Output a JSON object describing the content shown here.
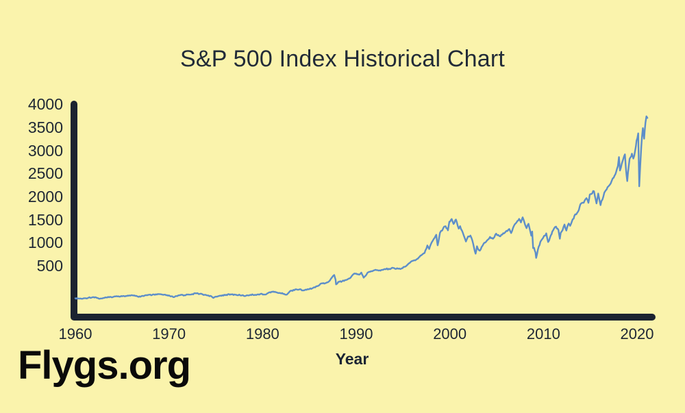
{
  "watermark": {
    "text": "Flygs.org"
  },
  "colors": {
    "background": "#FAF3AC",
    "axis": "#1B2330",
    "tick_text": "#1E2734",
    "title_text": "#222B38",
    "line": "#5D8EC9",
    "watermark_text": "#0A0A0A"
  },
  "chart_data": {
    "type": "line",
    "title": "S&P 500 Index Historical Chart",
    "xlabel": "Year",
    "ylabel": "",
    "x_ticks": [
      1960,
      1970,
      1980,
      1990,
      2000,
      2010,
      2020
    ],
    "y_ticks": [
      500,
      1000,
      1500,
      2000,
      2500,
      3000,
      3500,
      4000
    ],
    "xlim": [
      1959.6,
      2022
    ],
    "ylim": [
      0,
      4000
    ],
    "grid": false,
    "legend_position": "none",
    "series": [
      {
        "name": "S&P 500 Index",
        "color": "#5D8EC9",
        "points": [
          [
            1960.0,
            58
          ],
          [
            1960.3,
            55
          ],
          [
            1960.8,
            53
          ],
          [
            1961.4,
            65
          ],
          [
            1961.95,
            72
          ],
          [
            1962.2,
            69
          ],
          [
            1962.5,
            54
          ],
          [
            1962.75,
            56
          ],
          [
            1963.1,
            63
          ],
          [
            1963.6,
            70
          ],
          [
            1964.1,
            77
          ],
          [
            1964.6,
            82
          ],
          [
            1965.1,
            86
          ],
          [
            1965.5,
            85
          ],
          [
            1965.75,
            92
          ],
          [
            1966.1,
            93
          ],
          [
            1966.4,
            86
          ],
          [
            1966.75,
            74
          ],
          [
            1967.2,
            87
          ],
          [
            1967.7,
            95
          ],
          [
            1968.2,
            98
          ],
          [
            1968.5,
            99
          ],
          [
            1968.9,
            108
          ],
          [
            1969.3,
            101
          ],
          [
            1969.7,
            94
          ],
          [
            1970.1,
            86
          ],
          [
            1970.45,
            72
          ],
          [
            1970.9,
            84
          ],
          [
            1971.3,
            100
          ],
          [
            1971.65,
            94
          ],
          [
            1972.0,
            102
          ],
          [
            1972.5,
            108
          ],
          [
            1972.95,
            118
          ],
          [
            1973.3,
            110
          ],
          [
            1973.8,
            100
          ],
          [
            1974.2,
            92
          ],
          [
            1974.55,
            80
          ],
          [
            1974.75,
            62
          ],
          [
            1975.1,
            77
          ],
          [
            1975.5,
            90
          ],
          [
            1976.1,
            100
          ],
          [
            1976.7,
            104
          ],
          [
            1977.2,
            99
          ],
          [
            1977.8,
            93
          ],
          [
            1978.2,
            87
          ],
          [
            1978.7,
            100
          ],
          [
            1979.2,
            100
          ],
          [
            1979.75,
            108
          ],
          [
            1980.2,
            102
          ],
          [
            1980.6,
            121
          ],
          [
            1980.95,
            136
          ],
          [
            1981.4,
            131
          ],
          [
            1981.9,
            120
          ],
          [
            1982.3,
            110
          ],
          [
            1982.6,
            102
          ],
          [
            1982.9,
            140
          ],
          [
            1983.5,
            165
          ],
          [
            1983.9,
            163
          ],
          [
            1984.4,
            152
          ],
          [
            1984.9,
            165
          ],
          [
            1985.4,
            182
          ],
          [
            1985.95,
            207
          ],
          [
            1986.3,
            236
          ],
          [
            1986.7,
            239
          ],
          [
            1986.95,
            248
          ],
          [
            1987.3,
            291
          ],
          [
            1987.65,
            336
          ],
          [
            1987.8,
            280
          ],
          [
            1987.85,
            224
          ],
          [
            1988.1,
            255
          ],
          [
            1988.5,
            262
          ],
          [
            1988.9,
            276
          ],
          [
            1989.3,
            295
          ],
          [
            1989.7,
            346
          ],
          [
            1990.0,
            353
          ],
          [
            1990.3,
            340
          ],
          [
            1990.55,
            365
          ],
          [
            1990.8,
            304
          ],
          [
            1991.0,
            326
          ],
          [
            1991.3,
            375
          ],
          [
            1991.95,
            417
          ],
          [
            1992.5,
            414
          ],
          [
            1992.95,
            436
          ],
          [
            1993.5,
            448
          ],
          [
            1993.95,
            466
          ],
          [
            1994.25,
            445
          ],
          [
            1994.6,
            455
          ],
          [
            1994.95,
            460
          ],
          [
            1995.4,
            520
          ],
          [
            1995.95,
            615
          ],
          [
            1996.4,
            645
          ],
          [
            1996.6,
            670
          ],
          [
            1996.95,
            740
          ],
          [
            1997.3,
            790
          ],
          [
            1997.6,
            954
          ],
          [
            1997.8,
            877
          ],
          [
            1997.95,
            970
          ],
          [
            1998.3,
            1100
          ],
          [
            1998.55,
            1186
          ],
          [
            1998.7,
            957
          ],
          [
            1998.95,
            1229
          ],
          [
            1999.3,
            1330
          ],
          [
            1999.55,
            1372
          ],
          [
            1999.8,
            1282
          ],
          [
            1999.95,
            1469
          ],
          [
            2000.2,
            1527
          ],
          [
            2000.4,
            1420
          ],
          [
            2000.65,
            1517
          ],
          [
            2000.95,
            1320
          ],
          [
            2001.1,
            1373
          ],
          [
            2001.4,
            1225
          ],
          [
            2001.72,
            1040
          ],
          [
            2001.95,
            1148
          ],
          [
            2002.2,
            1170
          ],
          [
            2002.5,
            990
          ],
          [
            2002.75,
            776
          ],
          [
            2002.9,
            936
          ],
          [
            2003.1,
            855
          ],
          [
            2003.2,
            841
          ],
          [
            2003.6,
            990
          ],
          [
            2003.95,
            1058
          ],
          [
            2004.3,
            1140
          ],
          [
            2004.6,
            1100
          ],
          [
            2004.95,
            1211
          ],
          [
            2005.3,
            1156
          ],
          [
            2005.7,
            1220
          ],
          [
            2005.95,
            1248
          ],
          [
            2006.35,
            1310
          ],
          [
            2006.55,
            1223
          ],
          [
            2006.95,
            1418
          ],
          [
            2007.4,
            1530
          ],
          [
            2007.6,
            1455
          ],
          [
            2007.78,
            1565
          ],
          [
            2007.95,
            1468
          ],
          [
            2008.2,
            1330
          ],
          [
            2008.4,
            1425
          ],
          [
            2008.7,
            1166
          ],
          [
            2008.8,
            1255
          ],
          [
            2008.9,
            896
          ],
          [
            2009.0,
            903
          ],
          [
            2009.15,
            805
          ],
          [
            2009.22,
            683
          ],
          [
            2009.5,
            930
          ],
          [
            2009.75,
            1060
          ],
          [
            2009.95,
            1115
          ],
          [
            2010.3,
            1217
          ],
          [
            2010.5,
            1030
          ],
          [
            2010.7,
            1125
          ],
          [
            2010.95,
            1257
          ],
          [
            2011.15,
            1330
          ],
          [
            2011.35,
            1363
          ],
          [
            2011.6,
            1290
          ],
          [
            2011.75,
            1099
          ],
          [
            2011.85,
            1230
          ],
          [
            2011.95,
            1257
          ],
          [
            2012.25,
            1408
          ],
          [
            2012.45,
            1278
          ],
          [
            2012.7,
            1430
          ],
          [
            2012.85,
            1380
          ],
          [
            2012.95,
            1426
          ],
          [
            2013.4,
            1630
          ],
          [
            2013.7,
            1690
          ],
          [
            2013.95,
            1848
          ],
          [
            2014.3,
            1880
          ],
          [
            2014.6,
            1980
          ],
          [
            2014.8,
            1880
          ],
          [
            2014.95,
            2058
          ],
          [
            2015.4,
            2130
          ],
          [
            2015.67,
            1867
          ],
          [
            2015.85,
            2080
          ],
          [
            2016.1,
            1829
          ],
          [
            2016.5,
            2100
          ],
          [
            2016.75,
            2170
          ],
          [
            2016.95,
            2238
          ],
          [
            2017.3,
            2360
          ],
          [
            2017.6,
            2470
          ],
          [
            2017.95,
            2673
          ],
          [
            2018.07,
            2872
          ],
          [
            2018.18,
            2581
          ],
          [
            2018.45,
            2780
          ],
          [
            2018.7,
            2930
          ],
          [
            2018.8,
            2650
          ],
          [
            2018.95,
            2351
          ],
          [
            2019.2,
            2830
          ],
          [
            2019.45,
            2945
          ],
          [
            2019.6,
            2840
          ],
          [
            2019.8,
            3020
          ],
          [
            2019.95,
            3230
          ],
          [
            2020.12,
            3386
          ],
          [
            2020.23,
            2237
          ],
          [
            2020.45,
            3100
          ],
          [
            2020.62,
            3500
          ],
          [
            2020.75,
            3270
          ],
          [
            2020.9,
            3620
          ],
          [
            2021.0,
            3756
          ],
          [
            2021.1,
            3720
          ]
        ]
      }
    ]
  }
}
